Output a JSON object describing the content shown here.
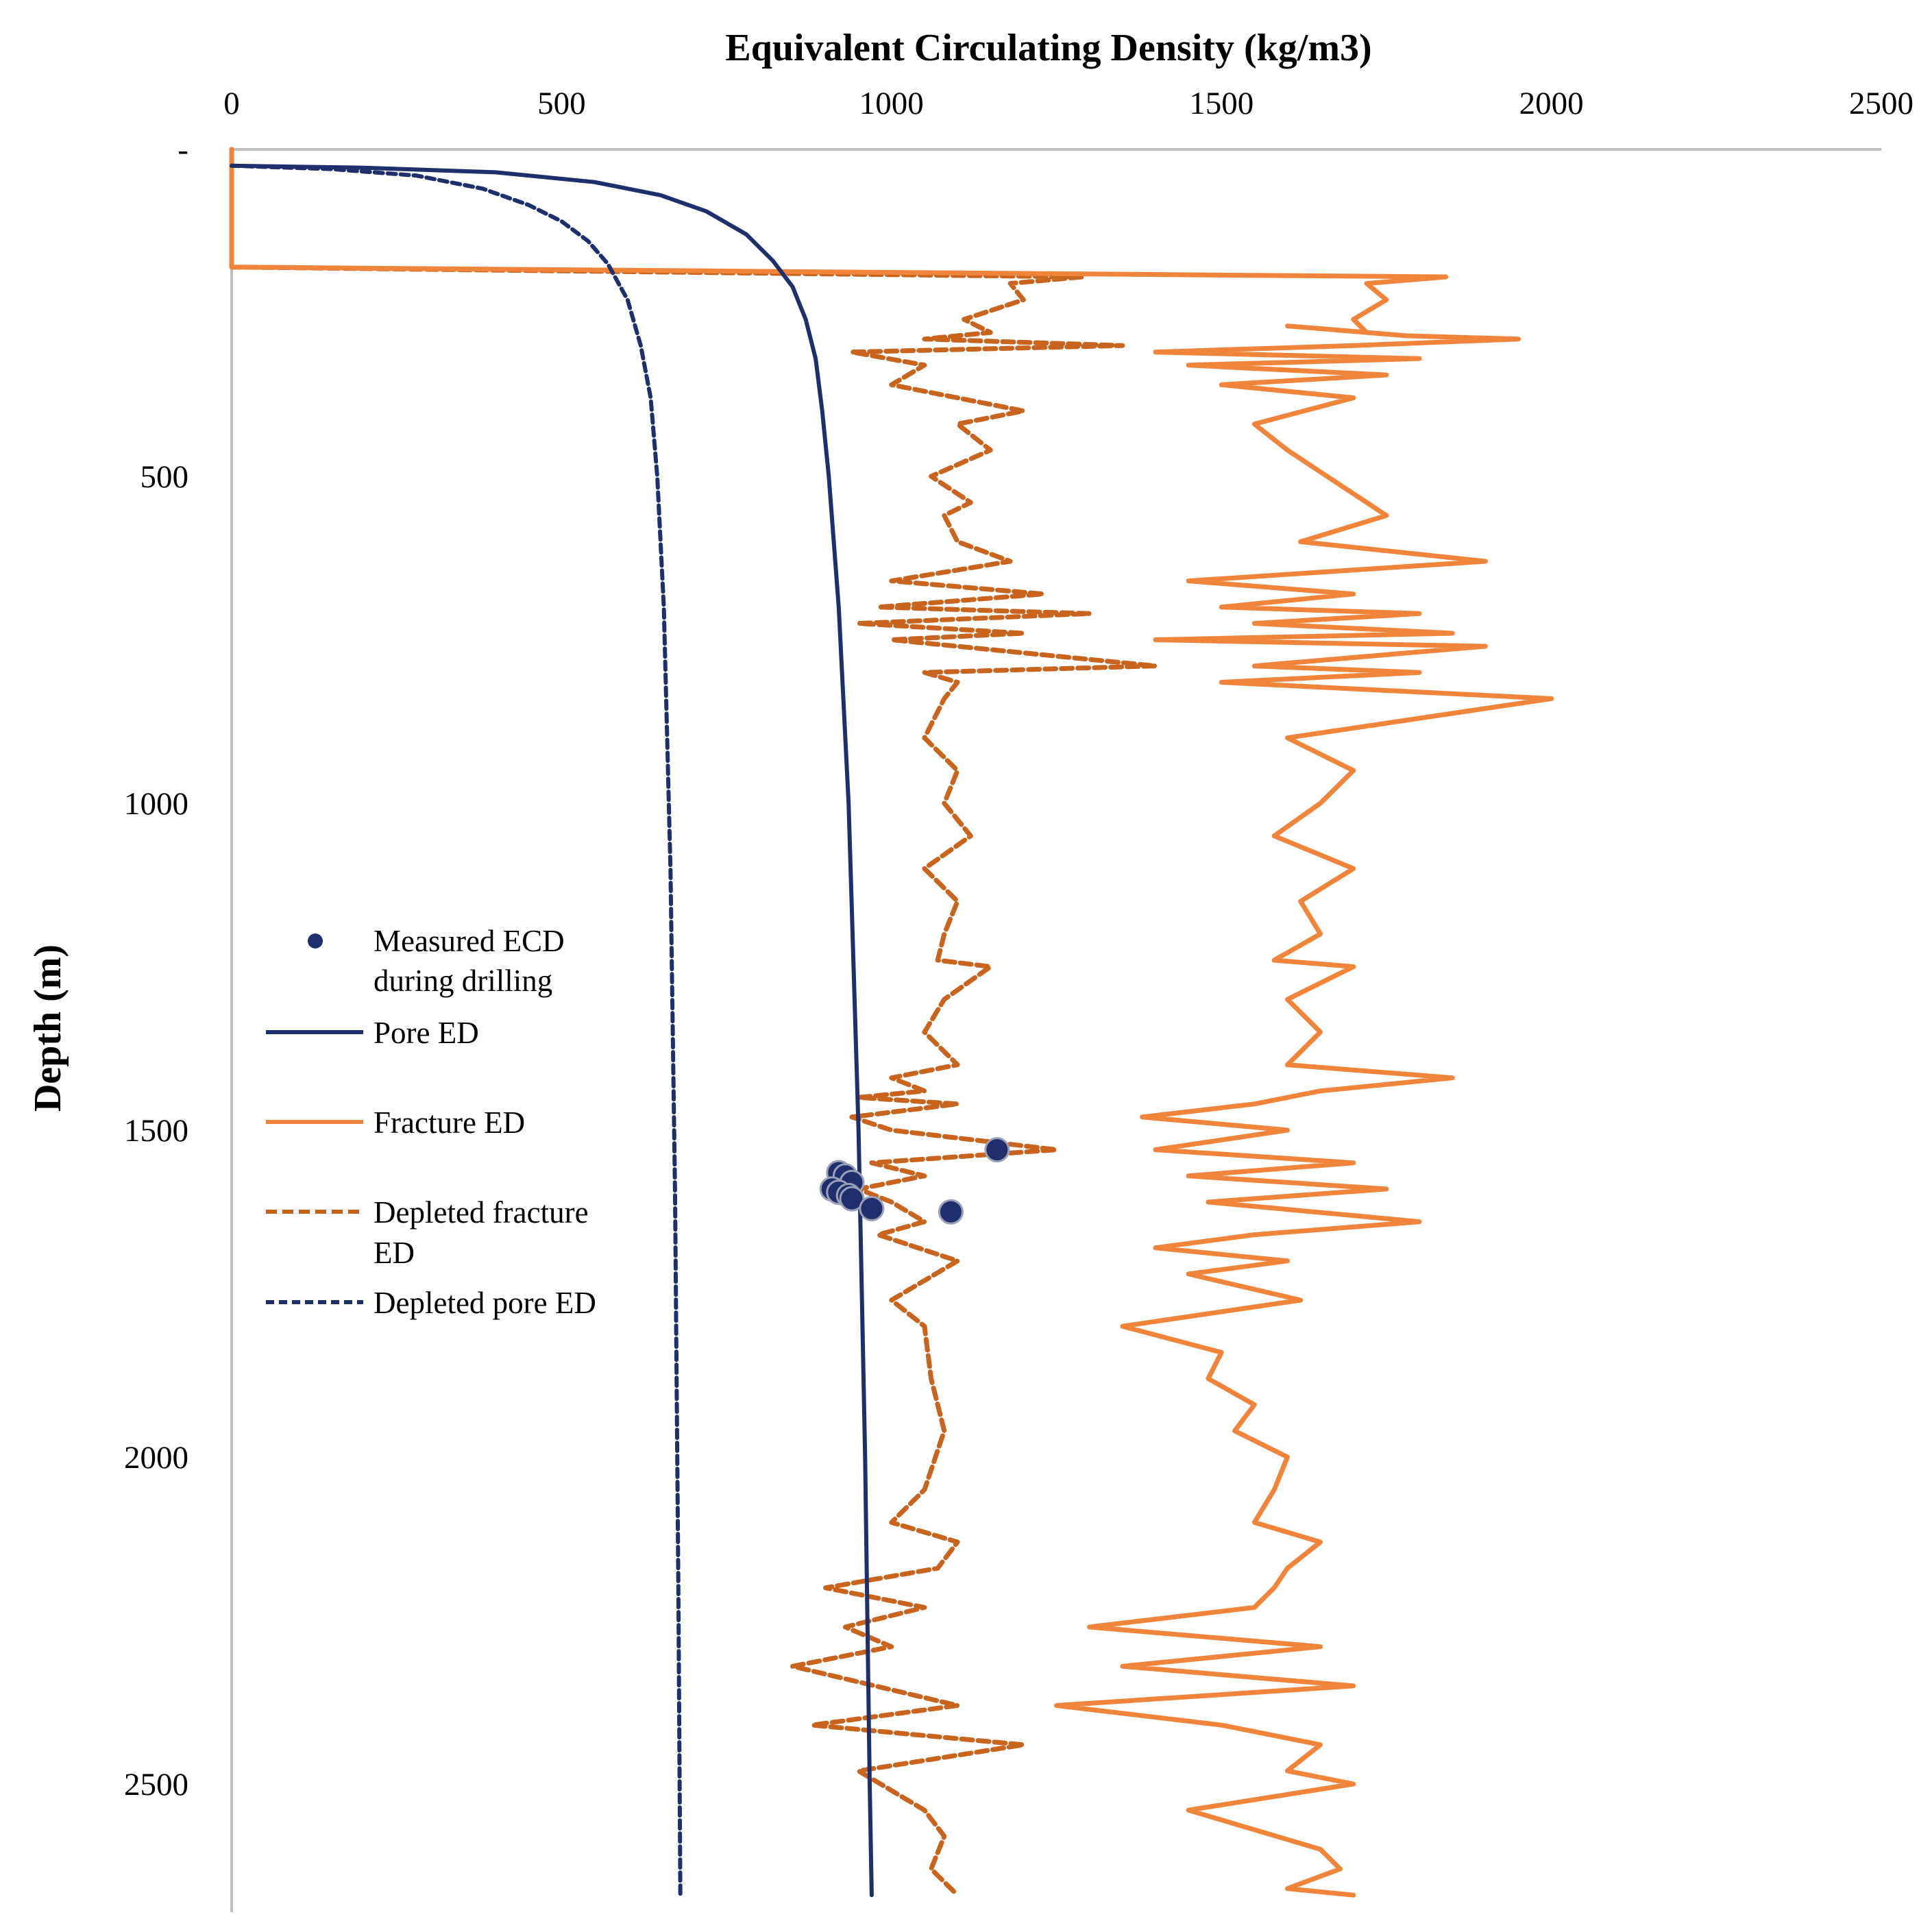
{
  "chart_data": {
    "type": "line",
    "title": "Equivalent Circulating Density (kg/m3)",
    "xlabel": "Equivalent Circulating Density (kg/m3)",
    "ylabel": "Depth (m)",
    "xlim": [
      0,
      2500
    ],
    "ylim": [
      0,
      2670
    ],
    "y_inverted": true,
    "x_axis_position": "top",
    "x_ticks": [
      "0",
      "500",
      "1000",
      "1500",
      "2000",
      "2500"
    ],
    "y_ticks": [
      "-",
      "500",
      "1000",
      "1500",
      "2000",
      "2500"
    ],
    "y_tick_values": [
      0,
      500,
      1000,
      1500,
      2000,
      2500
    ],
    "legend_position": "left-middle",
    "series": [
      {
        "name": "Pore ED",
        "style": "solid",
        "color": "#1f2f6b",
        "x": [
          0,
          200,
          400,
          550,
          650,
          720,
          780,
          820,
          850,
          870,
          885,
          895,
          905,
          920,
          935,
          950,
          960,
          967,
          970
        ],
        "y": [
          25,
          28,
          35,
          50,
          70,
          95,
          130,
          170,
          210,
          260,
          320,
          400,
          500,
          700,
          1000,
          1500,
          2000,
          2500,
          2670
        ]
      },
      {
        "name": "Depleted pore ED",
        "style": "dashed",
        "color": "#1f2f6b",
        "x": [
          0,
          150,
          280,
          380,
          450,
          500,
          540,
          570,
          600,
          620,
          635,
          645,
          655,
          665,
          672,
          677,
          680
        ],
        "y": [
          25,
          30,
          40,
          60,
          85,
          110,
          140,
          175,
          230,
          300,
          380,
          500,
          700,
          1100,
          1600,
          2200,
          2670
        ]
      },
      {
        "name": "Fracture ED",
        "style": "solid",
        "color": "#f0843a",
        "x": [
          0,
          0,
          1840,
          1720,
          1750,
          1700,
          1720,
          1600,
          1780,
          1950,
          1700,
          1400,
          1800,
          1450,
          1750,
          1500,
          1700,
          1550,
          1600,
          1750,
          1620,
          1900,
          1450,
          1700,
          1500,
          1800,
          1550,
          1850,
          1400,
          1900,
          1550,
          1800,
          1500,
          2000,
          1600,
          1700,
          1650,
          1580,
          1700,
          1620,
          1650,
          1580,
          1700,
          1600,
          1650,
          1600,
          1850,
          1650,
          1600,
          1550,
          1380,
          1600,
          1400,
          1700,
          1450,
          1750,
          1480,
          1800,
          1550,
          1400,
          1600,
          1450,
          1620,
          1350,
          1500,
          1480,
          1550,
          1520,
          1600,
          1580,
          1550,
          1650,
          1600,
          1580,
          1550,
          1300,
          1650,
          1350,
          1700,
          1250,
          1500,
          1650,
          1600,
          1700,
          1450,
          1550,
          1650,
          1680,
          1600,
          1700
        ],
        "y": [
          0,
          180,
          195,
          205,
          230,
          260,
          280,
          270,
          285,
          290,
          300,
          310,
          320,
          330,
          345,
          360,
          380,
          420,
          460,
          560,
          600,
          630,
          660,
          680,
          700,
          710,
          725,
          740,
          750,
          760,
          790,
          800,
          815,
          840,
          900,
          950,
          1000,
          1050,
          1100,
          1150,
          1200,
          1240,
          1250,
          1300,
          1350,
          1400,
          1420,
          1440,
          1450,
          1460,
          1480,
          1500,
          1530,
          1550,
          1570,
          1590,
          1610,
          1640,
          1660,
          1680,
          1700,
          1720,
          1760,
          1800,
          1840,
          1880,
          1920,
          1960,
          2000,
          2050,
          2100,
          2130,
          2170,
          2200,
          2230,
          2260,
          2290,
          2320,
          2350,
          2380,
          2410,
          2440,
          2480,
          2500,
          2540,
          2570,
          2600,
          2630,
          2660,
          2670
        ]
      },
      {
        "name": "Depleted fracture ED",
        "style": "dashed",
        "color": "#c8641e",
        "x": [
          0,
          0,
          1290,
          1180,
          1200,
          1110,
          1150,
          1050,
          1350,
          940,
          1050,
          1000,
          1200,
          1100,
          1150,
          1060,
          1120,
          1080,
          1100,
          1180,
          1000,
          1230,
          980,
          1300,
          950,
          1200,
          1000,
          1400,
          1050,
          1100,
          1080,
          1050,
          1100,
          1080,
          1120,
          1050,
          1100,
          1080,
          1070,
          1150,
          1080,
          1050,
          1100,
          1000,
          1050,
          950,
          1100,
          940,
          1000,
          1250,
          970,
          1050,
          950,
          1000,
          1050,
          980,
          1100,
          1000,
          1050,
          1060,
          1080,
          1050,
          1000,
          1100,
          1070,
          900,
          1050,
          930,
          1000,
          850,
          1100,
          880,
          1200,
          950,
          1050,
          1080,
          1060,
          1100
        ],
        "y": [
          0,
          180,
          195,
          205,
          230,
          260,
          280,
          290,
          300,
          310,
          330,
          360,
          400,
          420,
          460,
          500,
          540,
          560,
          600,
          630,
          660,
          680,
          700,
          710,
          725,
          740,
          750,
          790,
          800,
          815,
          840,
          900,
          950,
          1000,
          1050,
          1100,
          1150,
          1200,
          1240,
          1250,
          1300,
          1350,
          1400,
          1420,
          1440,
          1450,
          1460,
          1480,
          1500,
          1530,
          1550,
          1570,
          1590,
          1610,
          1640,
          1660,
          1700,
          1760,
          1800,
          1880,
          1960,
          2050,
          2100,
          2130,
          2170,
          2200,
          2230,
          2260,
          2290,
          2320,
          2380,
          2410,
          2440,
          2480,
          2540,
          2580,
          2630,
          2670
        ]
      }
    ],
    "measured_ecd": {
      "name": "Measured ECD during drilling",
      "color": "#1f2f6b",
      "x": [
        1160,
        920,
        930,
        940,
        910,
        920,
        935,
        940,
        970,
        1090
      ],
      "y": [
        1530,
        1565,
        1570,
        1580,
        1590,
        1595,
        1600,
        1605,
        1620,
        1625
      ]
    }
  },
  "legend": {
    "measured": [
      "Measured ECD",
      "during drilling"
    ],
    "pore": "Pore ED",
    "fracture": "Fracture ED",
    "depleted_fracture": [
      "Depleted fracture",
      "ED"
    ],
    "depleted_pore": "Depleted pore ED"
  }
}
